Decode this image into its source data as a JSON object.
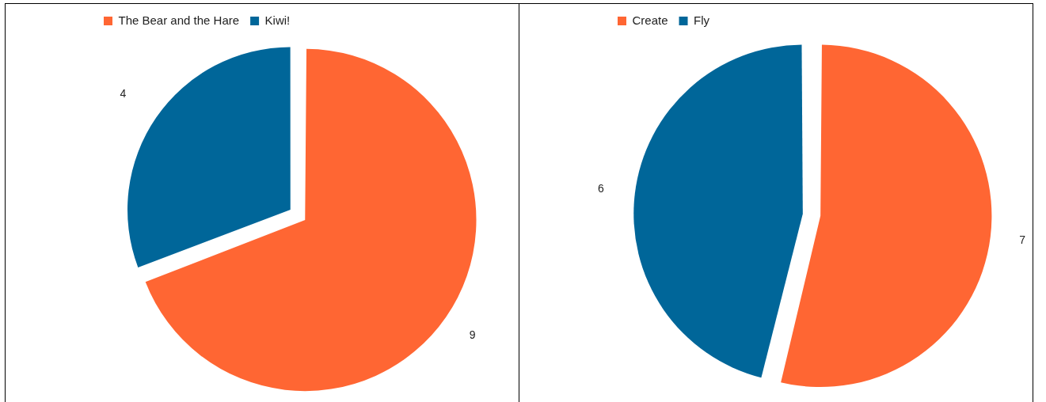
{
  "chart_data": [
    {
      "type": "pie",
      "categories": [
        "The Bear and the Hare",
        "Kiwi!"
      ],
      "values": [
        9,
        4
      ],
      "colors": [
        "#ff6633",
        "#006699"
      ],
      "legend": "top left",
      "data_labels": true
    },
    {
      "type": "pie",
      "categories": [
        "Create",
        "Fly"
      ],
      "values": [
        7,
        6
      ],
      "colors": [
        "#ff6633",
        "#006699"
      ],
      "legend": "top left",
      "data_labels": true
    }
  ]
}
